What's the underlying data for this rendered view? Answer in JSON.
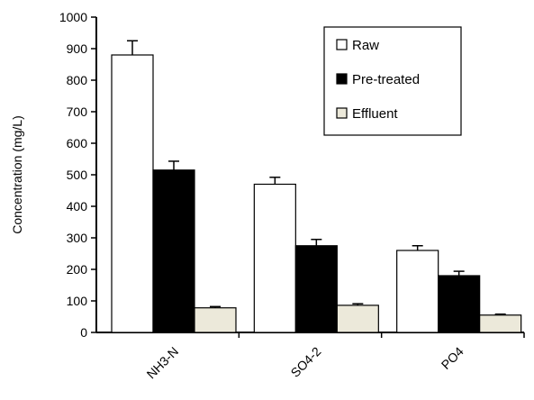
{
  "chart_data": {
    "type": "bar",
    "title": "",
    "xlabel": "",
    "ylabel": "Concentration  (mg/L)",
    "ylim": [
      0,
      1000
    ],
    "yticks": [
      0,
      100,
      200,
      300,
      400,
      500,
      600,
      700,
      800,
      900,
      1000
    ],
    "categories": [
      "NH3-N",
      "SO4-2",
      "PO4"
    ],
    "series": [
      {
        "name": "Raw",
        "values": [
          880,
          470,
          260
        ],
        "errors": [
          45,
          22,
          15
        ],
        "color": "#ffffff"
      },
      {
        "name": "Pre-treated",
        "values": [
          515,
          275,
          180
        ],
        "errors": [
          28,
          20,
          14
        ],
        "color": "#000000"
      },
      {
        "name": "Effluent",
        "values": [
          78,
          86,
          55
        ],
        "errors": [
          4,
          5,
          3
        ],
        "color": "#ece9da"
      }
    ],
    "grid": false,
    "legend_position": "top-right"
  }
}
